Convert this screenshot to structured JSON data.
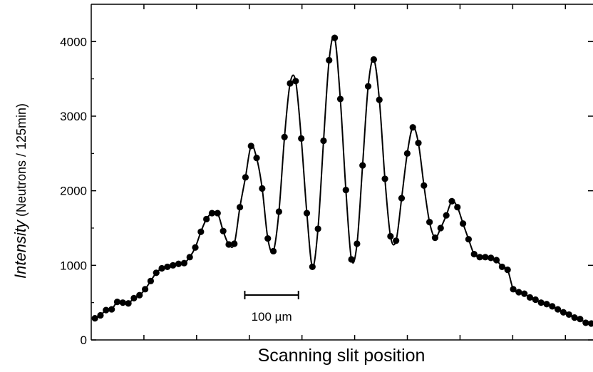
{
  "chart_data": {
    "type": "scatter",
    "title": "",
    "xlabel": "Scanning slit position",
    "ylabel_italic": "Intensity",
    "ylabel_unit": " (Neutrons / 125min)",
    "ylim": [
      0,
      4500
    ],
    "xlim": [
      0,
      100
    ],
    "x_ticklabels_shown": false,
    "yticks": [
      0,
      1000,
      2000,
      3000,
      4000
    ],
    "ytick_labels": [
      "0",
      "1000",
      "2000",
      "3000",
      "4000"
    ],
    "grid": false,
    "legend": "none",
    "scale_bar": {
      "label": "100 µm",
      "x_start": 30.6,
      "x_end": 41.3
    },
    "series": [
      {
        "marker": "filled-circle",
        "color": "#000000",
        "line": "smooth-fit",
        "x": [
          0.73,
          1.84,
          2.95,
          4.07,
          5.18,
          6.29,
          7.4,
          8.51,
          9.62,
          10.74,
          11.85,
          12.96,
          14.07,
          15.18,
          16.29,
          17.4,
          18.52,
          19.63,
          20.74,
          21.85,
          22.96,
          24.07,
          25.18,
          26.3,
          27.41,
          28.52,
          29.63,
          30.74,
          31.85,
          32.96,
          34.07,
          35.19,
          36.3,
          37.41,
          38.52,
          39.63,
          40.74,
          41.86,
          42.97,
          44.08,
          45.19,
          46.3,
          47.41,
          48.52,
          49.64,
          50.75,
          51.86,
          52.97,
          54.08,
          55.19,
          56.31,
          57.42,
          58.53,
          59.64,
          60.75,
          61.86,
          62.98,
          64.09,
          65.2,
          66.31,
          67.42,
          68.53,
          69.64,
          70.76,
          71.87,
          72.98,
          74.09,
          75.2,
          76.31,
          77.43,
          78.54,
          79.65,
          80.76,
          81.87,
          82.98,
          84.1,
          85.21,
          86.32,
          87.43,
          88.54,
          89.65,
          90.77,
          91.88,
          92.99,
          94.1,
          95.21,
          96.32,
          97.43,
          98.55,
          99.66
        ],
        "y": [
          290,
          330,
          400,
          410,
          510,
          500,
          490,
          560,
          600,
          680,
          790,
          900,
          960,
          980,
          1000,
          1020,
          1030,
          1110,
          1240,
          1450,
          1620,
          1700,
          1700,
          1460,
          1280,
          1290,
          1780,
          2180,
          2600,
          2440,
          2030,
          1360,
          1190,
          1720,
          2720,
          3440,
          3470,
          2700,
          1700,
          980,
          1490,
          2670,
          3750,
          4050,
          3230,
          2010,
          1080,
          1290,
          2340,
          3400,
          3760,
          3220,
          2160,
          1390,
          1330,
          1900,
          2500,
          2850,
          2640,
          2070,
          1580,
          1370,
          1500,
          1670,
          1860,
          1780,
          1560,
          1350,
          1150,
          1110,
          1110,
          1100,
          1070,
          980,
          940,
          680,
          640,
          620,
          570,
          540,
          500,
          480,
          450,
          410,
          370,
          340,
          300,
          280,
          230,
          220
        ]
      }
    ]
  }
}
